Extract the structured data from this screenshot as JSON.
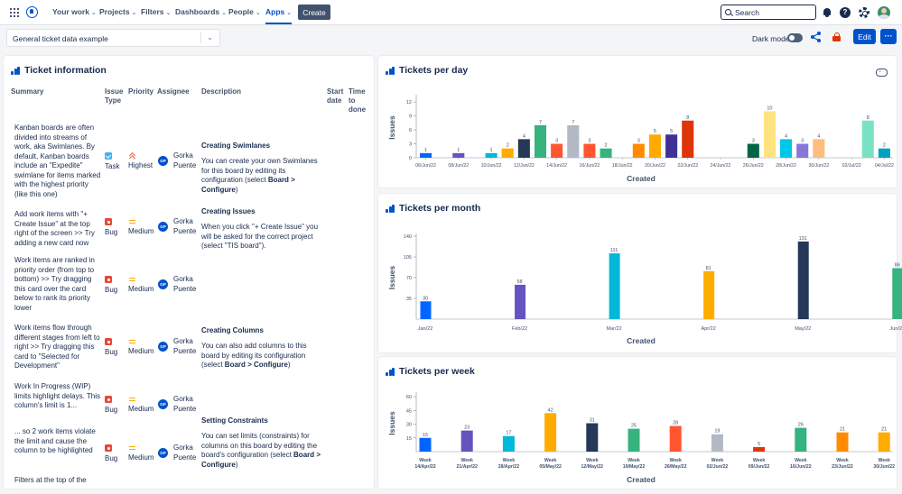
{
  "nav": {
    "items": [
      {
        "label": "Your work",
        "chevron": true
      },
      {
        "label": "Projects",
        "chevron": true
      },
      {
        "label": "Filters",
        "chevron": true
      },
      {
        "label": "Dashboards",
        "chevron": true
      },
      {
        "label": "People",
        "chevron": true
      },
      {
        "label": "Apps",
        "chevron": true,
        "active": true
      }
    ],
    "create_label": "Create",
    "search_placeholder": "Search",
    "help_glyph": "?"
  },
  "toolbar": {
    "dashboard_select": "General ticket data example",
    "dark_mode_label": "Dark mode",
    "edit_label": "Edit",
    "more_label": "···"
  },
  "ticket_panel": {
    "title": "Ticket information",
    "columns": [
      "Summary",
      "Issue Type",
      "Priority",
      "Assignee",
      "Description",
      "Start date",
      "Time to done"
    ],
    "rows": [
      {
        "summary": "Kanban boards are often divided into streams of work, aka Swimlanes. By default, Kanban boards include an \"Expedite\" swimlane for items marked with the highest priority (like this one)",
        "type": "Task",
        "priority": "Highest",
        "assignee": "Gorka Puente",
        "initials": "GP",
        "desc_title": "Creating Swimlanes",
        "desc_html": "You can create your own Swimlanes for this board by editing its configuration (select <b>Board &gt; Configure</b>)"
      },
      {
        "summary": "Add work items with \"+ Create Issue\" at the top right of the screen >> Try adding a new card now",
        "type": "Bug",
        "priority": "Medium",
        "assignee": "Gorka Puente",
        "initials": "GP",
        "desc_title": "Creating Issues",
        "desc_html": "When you click \"+ Create Issue\" you will be asked for the correct project (select \"TIS board\")."
      },
      {
        "summary": "Work items are ranked in priority order (from top to bottom) >> Try dragging this card over the card below to rank its priority lower",
        "type": "Bug",
        "priority": "Medium",
        "assignee": "Gorka Puente",
        "initials": "GP",
        "desc_title": "",
        "desc_html": ""
      },
      {
        "summary": "Work items flow through different stages from left to right >> Try dragging this card to \"Selected for Development\"",
        "type": "Bug",
        "priority": "Medium",
        "assignee": "Gorka Puente",
        "initials": "GP",
        "desc_title": "Creating Columns",
        "desc_html": "You can also add columns to this board by editing its configuration (select <b>Board &gt; Configure</b>)"
      },
      {
        "summary": "Work In Progress (WIP) limits highlight delays. This column's limit is 1...",
        "type": "Bug",
        "priority": "Medium",
        "assignee": "Gorka Puente",
        "initials": "GP",
        "desc_title": "",
        "desc_html": ""
      },
      {
        "summary": "... so 2 work items violate the limit and cause the column to be highlighted",
        "type": "Bug",
        "priority": "Medium",
        "assignee": "Gorka Puente",
        "initials": "GP",
        "desc_title": "Setting Constraints",
        "desc_html": "You can set limits (constraints) for columns on this board by editing the board's configuration (select <b>Board &gt; Configure</b>)"
      },
      {
        "summary": "Filters at the top of the",
        "type": "",
        "priority": "",
        "assignee": "",
        "initials": "",
        "desc_title": "",
        "desc_html": ""
      }
    ]
  },
  "colors": {
    "primary": "#0052cc",
    "bug": "#e5493a",
    "task": "#4bade8",
    "highest": "#ff5630",
    "medium": "#ffab00"
  },
  "chart_data": [
    {
      "title": "Tickets per day",
      "type": "bar",
      "xlabel": "Created",
      "ylabel": "Issues",
      "ylim": [
        0,
        13
      ],
      "yticks": [
        0,
        3,
        6,
        9,
        12
      ],
      "tick_labels": [
        "06/Jun/22",
        "08/Jun/22",
        "10/Jun/22",
        "12/Jun/22",
        "14/Jun/22",
        "16/Jun/22",
        "18/Jun/22",
        "20/Jun/22",
        "22/Jun/22",
        "24/Jun/22",
        "26/Jun/22",
        "28/Jun/22",
        "30/Jun/22",
        "02/Jul/22",
        "04/Jul/22"
      ],
      "bars": [
        {
          "value": 1,
          "color": "#0065ff",
          "slot": 0
        },
        {
          "value": 1,
          "color": "#6554c0",
          "slot": 2
        },
        {
          "value": 1,
          "color": "#00b8d9",
          "slot": 4
        },
        {
          "value": 2,
          "color": "#ffab00",
          "slot": 5
        },
        {
          "value": 4,
          "color": "#253858",
          "slot": 6
        },
        {
          "value": 7,
          "color": "#36b37e",
          "slot": 7
        },
        {
          "value": 3,
          "color": "#ff5630",
          "slot": 8
        },
        {
          "value": 7,
          "color": "#b3b9c4",
          "slot": 9
        },
        {
          "value": 3,
          "color": "#ff5630",
          "slot": 10
        },
        {
          "value": 2,
          "color": "#36b37e",
          "slot": 11
        },
        {
          "value": 3,
          "color": "#ff8b00",
          "slot": 13
        },
        {
          "value": 5,
          "color": "#ffab00",
          "slot": 14
        },
        {
          "value": 5,
          "color": "#403294",
          "slot": 15
        },
        {
          "value": 8,
          "color": "#de350b",
          "slot": 16
        },
        {
          "value": 3,
          "color": "#006644",
          "slot": 20
        },
        {
          "value": 10,
          "color": "#ffe380",
          "slot": 21
        },
        {
          "value": 4,
          "color": "#00c7e6",
          "slot": 22
        },
        {
          "value": 3,
          "color": "#8777d9",
          "slot": 23
        },
        {
          "value": 4,
          "color": "#ffbd80",
          "slot": 24
        },
        {
          "value": 8,
          "color": "#79e2c4",
          "slot": 27
        },
        {
          "value": 2,
          "color": "#00a3bf",
          "slot": 28
        }
      ]
    },
    {
      "title": "Tickets per month",
      "type": "bar",
      "xlabel": "Created",
      "ylabel": "Issues",
      "ylim": [
        0,
        140
      ],
      "yticks": [
        35,
        70,
        105,
        140
      ],
      "categories": [
        "Jan/22",
        "Feb/22",
        "Mar/22",
        "Apr/22",
        "May/22",
        "Jun/22"
      ],
      "values": [
        30,
        58,
        111,
        81,
        131,
        86
      ],
      "colors": [
        "#0065ff",
        "#6554c0",
        "#00b8d9",
        "#ffab00",
        "#253858",
        "#36b37e"
      ]
    },
    {
      "title": "Tickets per week",
      "type": "bar",
      "xlabel": "Created",
      "ylabel": "Issues",
      "ylim": [
        0,
        62
      ],
      "yticks": [
        15,
        30,
        45,
        60
      ],
      "categories": [
        "Week\n14/Apr/22",
        "Week\n21/Apr/22",
        "Week\n28/Apr/22",
        "Week\n05/May/22",
        "Week\n12/May/22",
        "Week\n19/May/22",
        "Week\n26/May/22",
        "Week\n02/Jun/22",
        "Week\n09/Jun/22",
        "Week\n16/Jun/22",
        "Week\n23/Jun/22",
        "Week\n30/Jun/22"
      ],
      "values": [
        15,
        23,
        17,
        42,
        31,
        25,
        28,
        19,
        5,
        26,
        21,
        21
      ],
      "colors": [
        "#0065ff",
        "#6554c0",
        "#00b8d9",
        "#ffab00",
        "#253858",
        "#36b37e",
        "#ff5630",
        "#b3b9c4",
        "#de350b",
        "#36b37e",
        "#ff8b00",
        "#ffab00"
      ]
    }
  ]
}
